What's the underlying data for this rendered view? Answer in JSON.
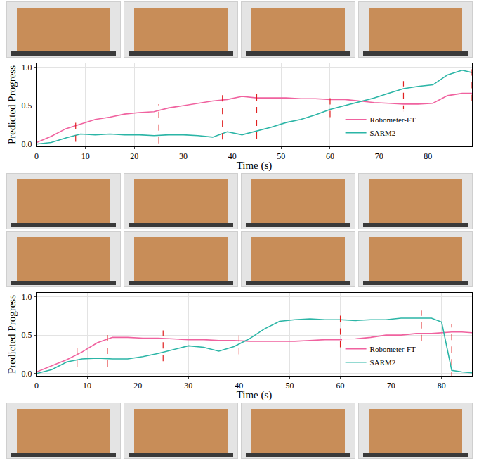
{
  "chart_data": [
    {
      "type": "line",
      "x_label": "Time (s)",
      "y_label": "Predicted Progress",
      "xlim": [
        0,
        89
      ],
      "xticks": [
        0,
        10,
        20,
        30,
        40,
        50,
        60,
        70,
        80
      ],
      "ylim": [
        -0.03,
        1.05
      ],
      "yticks": [
        {
          "value": 0,
          "label": "0.0"
        },
        {
          "value": 0.5,
          "label": "0.5"
        },
        {
          "value": 1,
          "label": "1.0"
        }
      ],
      "grid": true,
      "legend": "lower right",
      "x": [
        0,
        3,
        6,
        9,
        12,
        15,
        18,
        21,
        24,
        27,
        30,
        33,
        36,
        39,
        42,
        45,
        48,
        51,
        54,
        57,
        60,
        63,
        66,
        69,
        72,
        75,
        78,
        81,
        84,
        87,
        89
      ],
      "series": [
        {
          "name": "Robometer-FT",
          "color": "#f0629f",
          "values": [
            0.02,
            0.1,
            0.2,
            0.26,
            0.32,
            0.35,
            0.39,
            0.41,
            0.42,
            0.47,
            0.5,
            0.53,
            0.56,
            0.58,
            0.62,
            0.6,
            0.6,
            0.6,
            0.59,
            0.59,
            0.58,
            0.58,
            0.56,
            0.54,
            0.53,
            0.52,
            0.52,
            0.53,
            0.63,
            0.66,
            0.66
          ]
        },
        {
          "name": "SARM2",
          "color": "#2bb5a6",
          "values": [
            0,
            0.02,
            0.08,
            0.13,
            0.12,
            0.13,
            0.12,
            0.12,
            0.11,
            0.12,
            0.12,
            0.11,
            0.09,
            0.16,
            0.12,
            0.17,
            0.22,
            0.28,
            0.32,
            0.38,
            0.45,
            0.5,
            0.55,
            0.6,
            0.66,
            0.72,
            0.75,
            0.77,
            0.9,
            0.96,
            0.93
          ]
        }
      ],
      "frame_times": [
        8,
        25,
        38,
        45,
        60,
        75,
        89
      ]
    },
    {
      "type": "line",
      "x_label": "Time (s)",
      "y_label": "Predicted Progress",
      "xlim": [
        0,
        86
      ],
      "xticks": [
        0,
        10,
        20,
        30,
        40,
        50,
        60,
        70,
        80
      ],
      "ylim": [
        -0.03,
        1.05
      ],
      "yticks": [
        {
          "value": 0,
          "label": "0.0"
        },
        {
          "value": 0.5,
          "label": "0.5"
        },
        {
          "value": 1,
          "label": "1.0"
        }
      ],
      "grid": true,
      "legend": "lower right",
      "x": [
        0,
        3,
        6,
        9,
        12,
        15,
        18,
        21,
        24,
        27,
        30,
        33,
        36,
        39,
        42,
        45,
        48,
        51,
        54,
        57,
        60,
        63,
        66,
        69,
        72,
        75,
        78,
        80,
        82,
        84,
        86
      ],
      "series": [
        {
          "name": "Robometer-FT",
          "color": "#f0629f",
          "values": [
            0.02,
            0.1,
            0.18,
            0.28,
            0.4,
            0.47,
            0.47,
            0.46,
            0.46,
            0.45,
            0.44,
            0.44,
            0.43,
            0.43,
            0.42,
            0.42,
            0.42,
            0.42,
            0.43,
            0.44,
            0.44,
            0.45,
            0.47,
            0.5,
            0.5,
            0.52,
            0.52,
            0.53,
            0.54,
            0.54,
            0.53
          ]
        },
        {
          "name": "SARM2",
          "color": "#2bb5a6",
          "values": [
            0,
            0.05,
            0.15,
            0.19,
            0.2,
            0.19,
            0.19,
            0.22,
            0.26,
            0.31,
            0.36,
            0.34,
            0.29,
            0.35,
            0.45,
            0.58,
            0.68,
            0.7,
            0.71,
            0.7,
            0.7,
            0.69,
            0.7,
            0.7,
            0.72,
            0.72,
            0.72,
            0.67,
            0.04,
            0.02,
            0.01
          ]
        }
      ],
      "frame_times": [
        8,
        14,
        25,
        40,
        60,
        76,
        82
      ]
    }
  ]
}
